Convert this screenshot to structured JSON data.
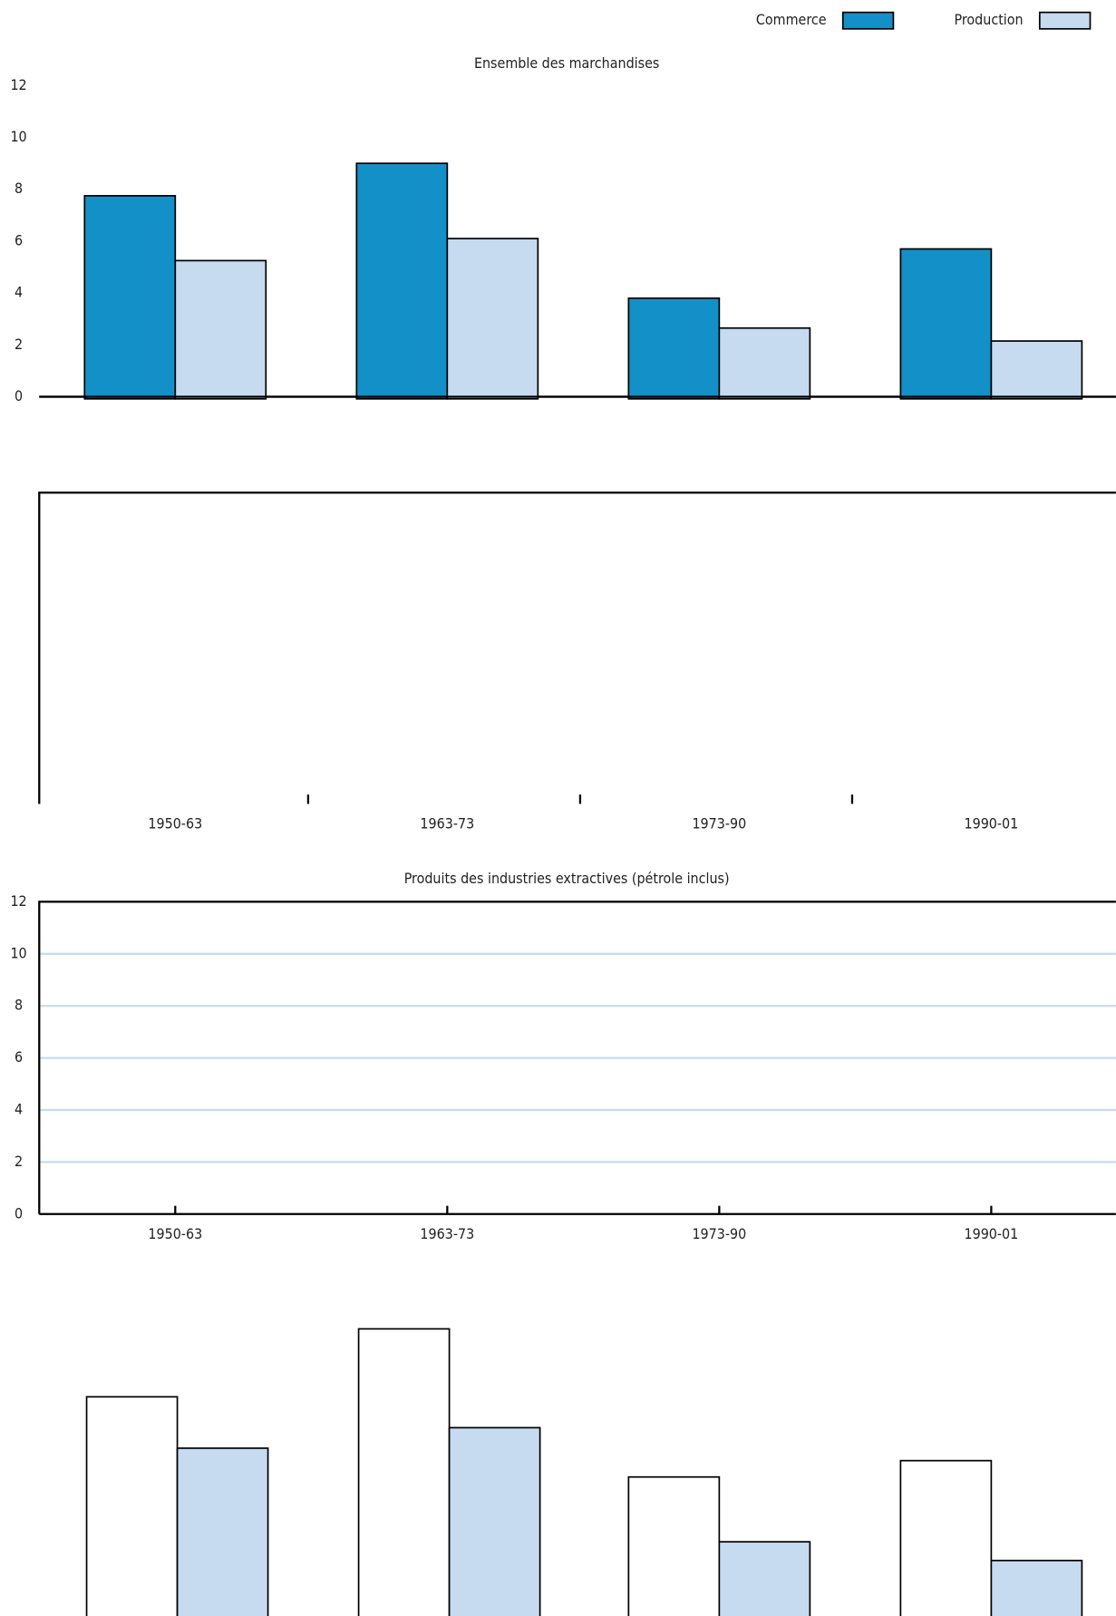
{
  "chart_data": [
    {
      "type": "bar",
      "title": "Ensemble des marchandises",
      "series": [
        {
          "name": "Commerce",
          "color": "#1490c8",
          "values": [
            7.75,
            9.0,
            3.8,
            5.7
          ]
        },
        {
          "name": "Production",
          "color": "#c6dbef",
          "values": [
            5.25,
            6.1,
            2.65,
            2.15
          ]
        }
      ],
      "ylim": [
        0,
        12
      ],
      "yticks": [
        0,
        2,
        4,
        6,
        8,
        10,
        12
      ],
      "legend": "top-right"
    },
    {
      "type": "bar",
      "categories": [
        "1950-63",
        "1963-73",
        "1973-90",
        "1990-01"
      ]
    },
    {
      "type": "bar",
      "title": "Produits des industries extractives (pétrole inclus)",
      "categories": [
        "1950-63",
        "1963-73",
        "1973-90",
        "1990-01"
      ],
      "ylim": [
        0,
        12
      ],
      "yticks": [
        0,
        2,
        4,
        6,
        8,
        10,
        12
      ],
      "grid": true
    },
    {
      "type": "bar",
      "series": [
        {
          "color": "#ffffff",
          "values": [
            8.45,
            11.07,
            5.36,
            5.99
          ]
        },
        {
          "color": "#c6dbef",
          "values": [
            6.47,
            7.26,
            2.86,
            2.14
          ]
        }
      ],
      "ylim": [
        0,
        12
      ]
    }
  ]
}
